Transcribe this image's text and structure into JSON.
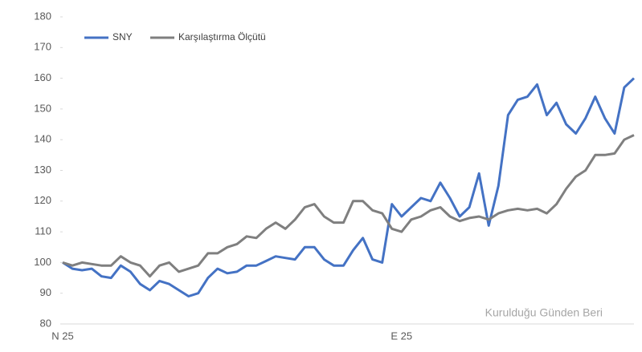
{
  "chart_data": {
    "type": "line",
    "categories": [
      "N 25",
      null,
      null,
      null,
      null,
      null,
      null,
      null,
      null,
      null,
      null,
      null,
      null,
      null,
      null,
      null,
      null,
      null,
      null,
      null,
      null,
      null,
      null,
      null,
      null,
      null,
      null,
      null,
      null,
      null,
      null,
      null,
      null,
      null,
      null,
      "E 25",
      null,
      null,
      null,
      null,
      null,
      null,
      null,
      null,
      null,
      null,
      null,
      null,
      null,
      null,
      null,
      null,
      null,
      null,
      null,
      null,
      null,
      null,
      null,
      null
    ],
    "series": [
      {
        "name": "SNY",
        "color": "#4472c4",
        "values": [
          100,
          98,
          97.5,
          98,
          95.5,
          95,
          99,
          97,
          93,
          91,
          94,
          93,
          91,
          89,
          90,
          95,
          98,
          96.5,
          97,
          99,
          99,
          100.5,
          102,
          101.5,
          101,
          105,
          105,
          101,
          99,
          99,
          104,
          108,
          101,
          100,
          119,
          115,
          118,
          121,
          120,
          126,
          121,
          115,
          118,
          129,
          112,
          125,
          148,
          153,
          154,
          158,
          148,
          152,
          145,
          142,
          147,
          154,
          147,
          142,
          157,
          160
        ]
      },
      {
        "name": "Karşılaştırma Ölçütü",
        "color": "#7f7f7f",
        "values": [
          100,
          99,
          100,
          99.5,
          99,
          99,
          102,
          100,
          99,
          95.5,
          99,
          100,
          97,
          98,
          99,
          103,
          103,
          105,
          106,
          108.5,
          108,
          111,
          113,
          111,
          114,
          118,
          119,
          115,
          113,
          113,
          120,
          120,
          117,
          116,
          111,
          110,
          114,
          115,
          117,
          118,
          115,
          113.5,
          114.5,
          115,
          114,
          116,
          117,
          117.5,
          117,
          117.5,
          116,
          119,
          124,
          128,
          130,
          135,
          135,
          135.5,
          140,
          141.5
        ]
      }
    ],
    "ylim": [
      80,
      180
    ],
    "yticks": [
      80,
      90,
      100,
      110,
      120,
      130,
      140,
      150,
      160,
      170,
      180
    ],
    "annotation": "Kurulduğu Günden Beri",
    "legend": "top-left"
  }
}
